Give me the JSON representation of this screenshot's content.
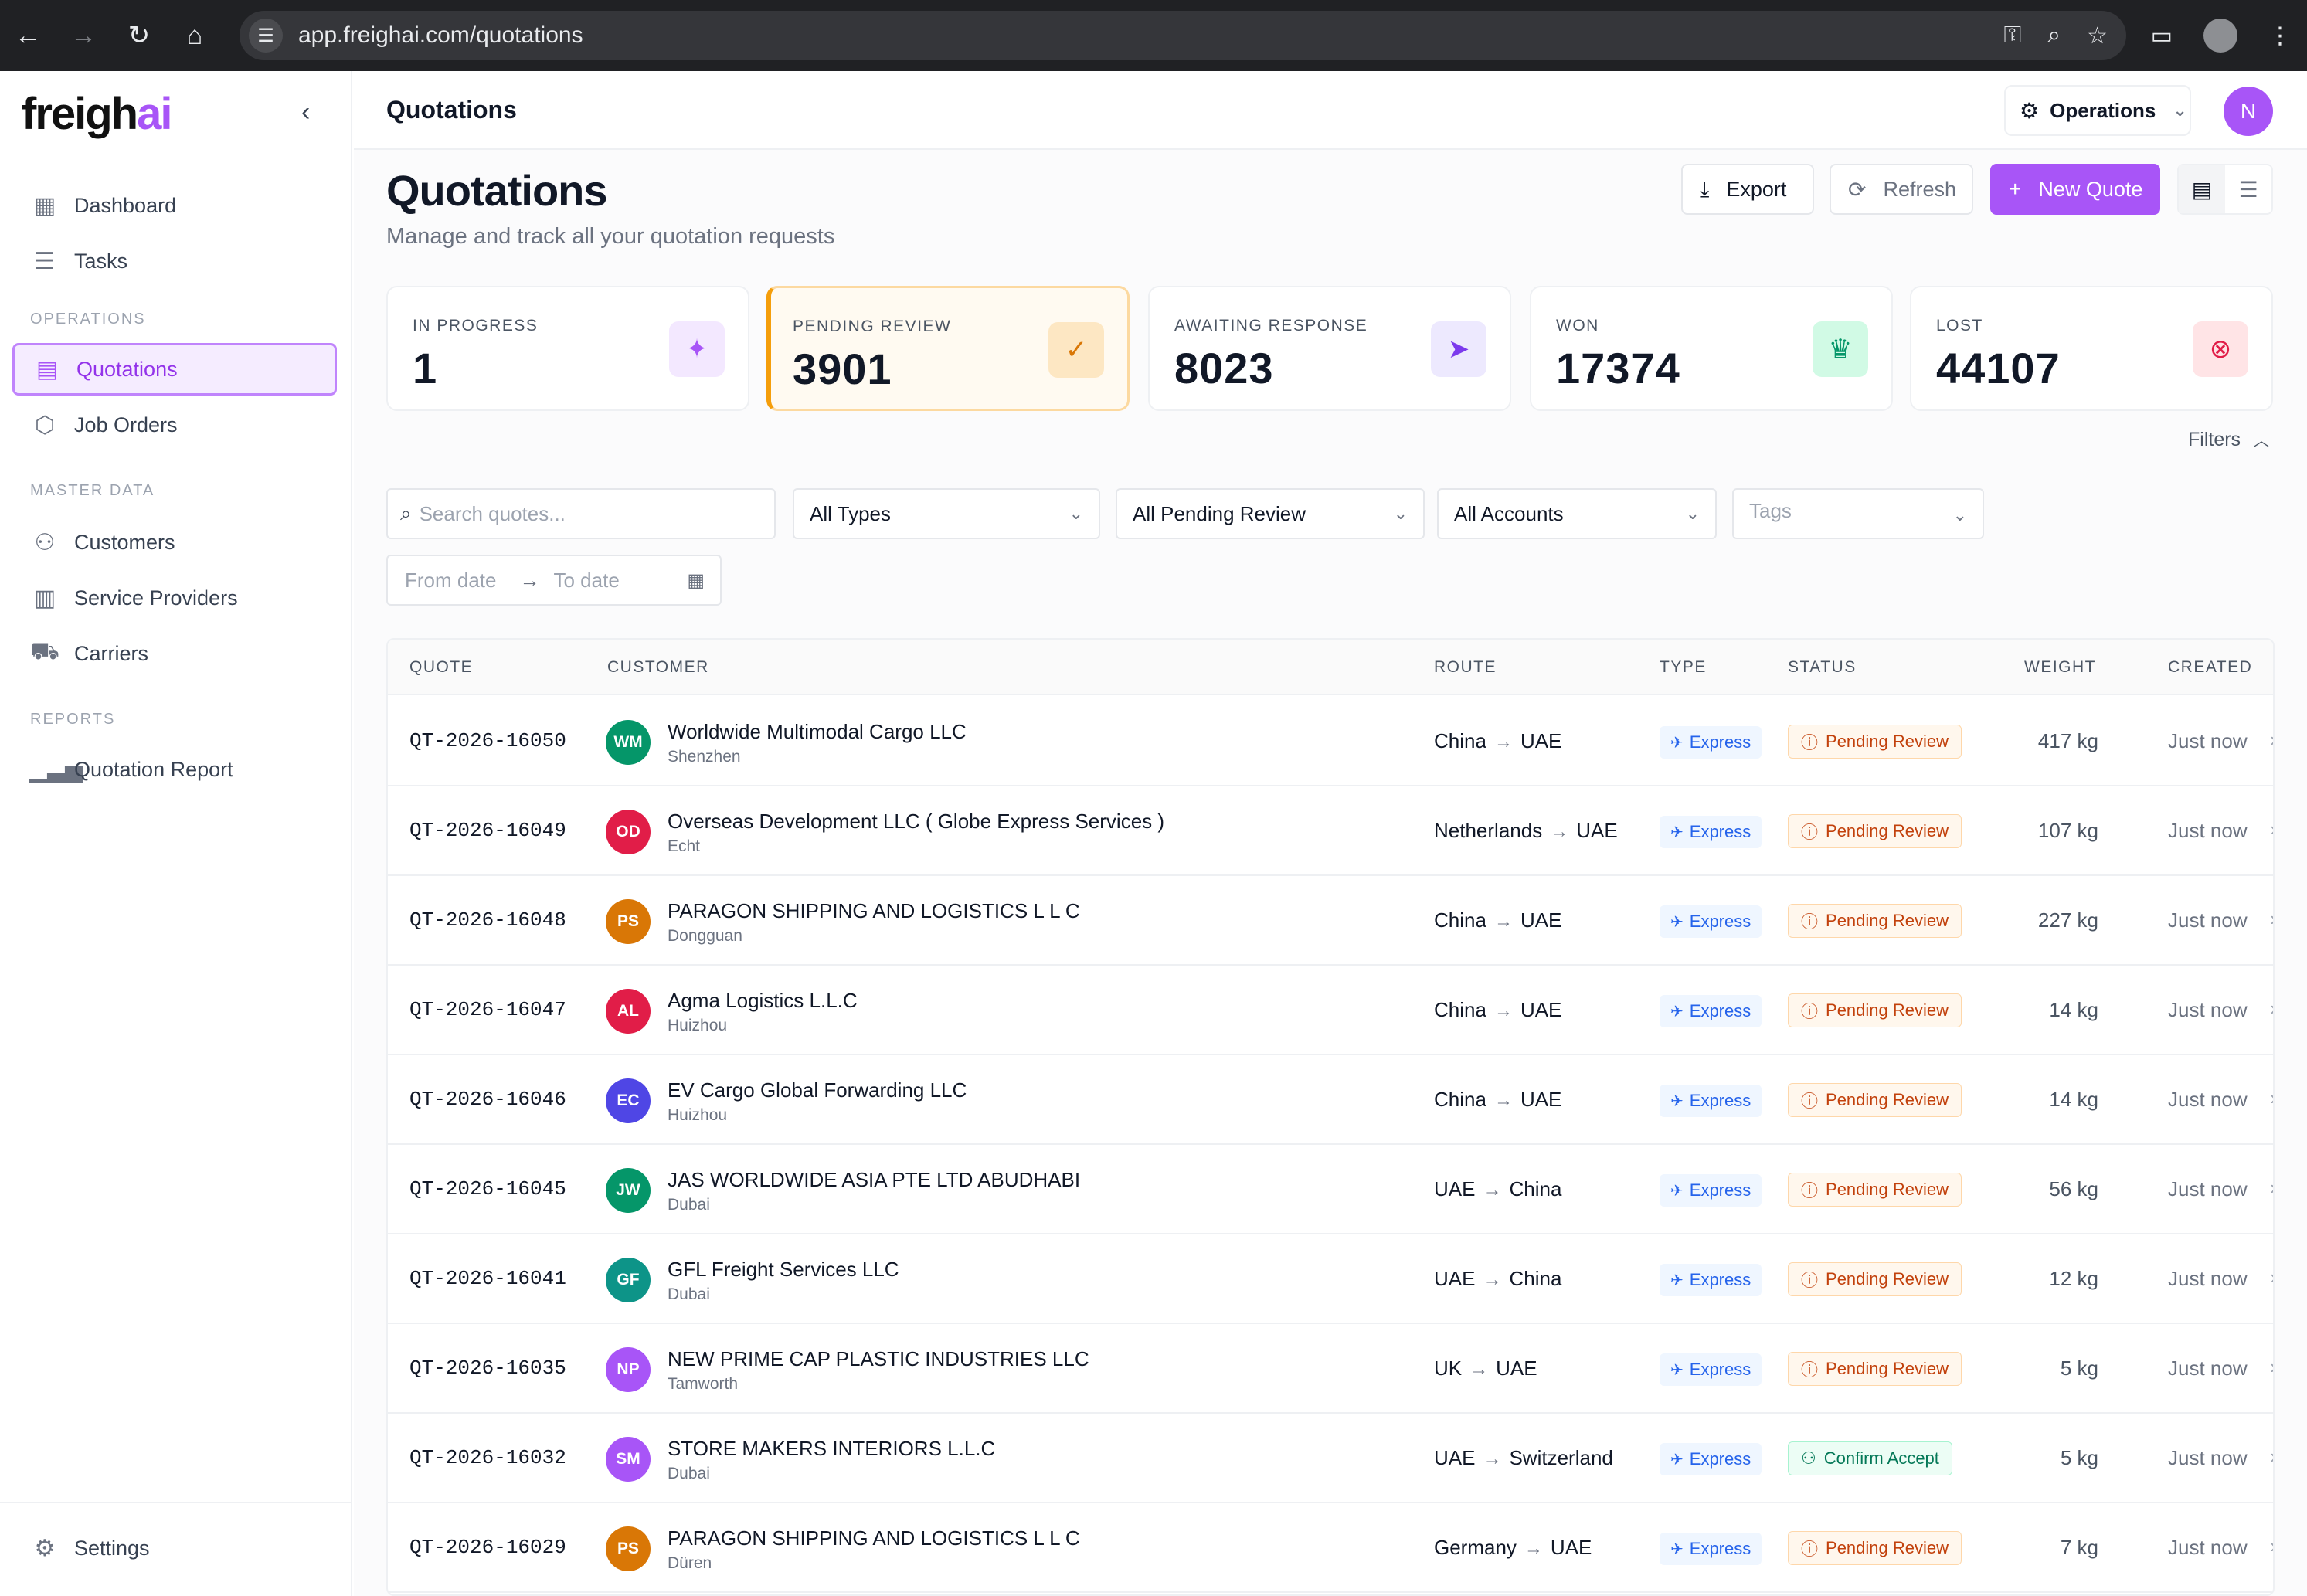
{
  "browser": {
    "url": "app.freighai.com/quotations",
    "icons": [
      "back-arrow-icon",
      "forward-arrow-icon",
      "reload-icon",
      "home-icon",
      "site-settings-icon",
      "key-icon",
      "zoom-icon",
      "star-icon",
      "cast-icon",
      "profile-icon",
      "menu-dots-icon"
    ]
  },
  "sidebar": {
    "logo_main": "freigh",
    "logo_accent": "ai",
    "items_top": [
      {
        "label": "Dashboard",
        "icon": "dashboard-icon"
      },
      {
        "label": "Tasks",
        "icon": "tasks-icon"
      }
    ],
    "section_operations": "OPERATIONS",
    "items_operations": [
      {
        "label": "Quotations",
        "icon": "document-icon"
      },
      {
        "label": "Job Orders",
        "icon": "box-icon"
      }
    ],
    "section_master": "MASTER DATA",
    "items_master": [
      {
        "label": "Customers",
        "icon": "users-icon"
      },
      {
        "label": "Service Providers",
        "icon": "building-icon"
      },
      {
        "label": "Carriers",
        "icon": "truck-icon"
      }
    ],
    "section_reports": "REPORTS",
    "items_reports": [
      {
        "label": "Quotation Report",
        "icon": "bar-chart-icon"
      }
    ],
    "settings_label": "Settings"
  },
  "header": {
    "crumb": "Quotations",
    "workspace": "Operations",
    "avatar_initial": "N"
  },
  "page": {
    "title": "Quotations",
    "subtitle": "Manage and track all your quotation requests",
    "export_label": "Export",
    "refresh_label": "Refresh",
    "new_quote_label": "New Quote"
  },
  "stats": [
    {
      "label": "IN PROGRESS",
      "value": "1",
      "icon": "sparkle-icon",
      "color": "#a855f7",
      "bg": "#f3e8ff"
    },
    {
      "label": "PENDING REVIEW",
      "value": "3901",
      "icon": "file-check-icon",
      "color": "#d97706",
      "bg": "#fde7c3"
    },
    {
      "label": "AWAITING RESPONSE",
      "value": "8023",
      "icon": "send-icon",
      "color": "#7c3aed",
      "bg": "#ede9fe"
    },
    {
      "label": "WON",
      "value": "17374",
      "icon": "trophy-icon",
      "color": "#059669",
      "bg": "#d1fae5"
    },
    {
      "label": "LOST",
      "value": "44107",
      "icon": "x-circle-icon",
      "color": "#e11d48",
      "bg": "#ffe4e6"
    }
  ],
  "filters": {
    "toggle_label": "Filters",
    "search_placeholder": "Search quotes...",
    "types": "All Types",
    "status": "All Pending Review",
    "accounts": "All Accounts",
    "tags_placeholder": "Tags",
    "from_date_placeholder": "From date",
    "to_date_placeholder": "To date"
  },
  "table": {
    "headers": {
      "quote": "QUOTE",
      "customer": "CUSTOMER",
      "route": "ROUTE",
      "type": "TYPE",
      "status": "STATUS",
      "weight": "WEIGHT",
      "created": "CREATED"
    },
    "rows": [
      {
        "id": "QT-2026-16050",
        "initials": "WM",
        "avatar_color": "#059669",
        "name": "Worldwide Multimodal Cargo LLC",
        "city": "Shenzhen",
        "from": "China",
        "to": "UAE",
        "type": "Express",
        "status": "Pending Review",
        "status_kind": "pending",
        "weight": "417 kg",
        "created": "Just now"
      },
      {
        "id": "QT-2026-16049",
        "initials": "OD",
        "avatar_color": "#e11d48",
        "name": "Overseas Development LLC ( Globe Express Services )",
        "city": "Echt",
        "from": "Netherlands",
        "to": "UAE",
        "type": "Express",
        "status": "Pending Review",
        "status_kind": "pending",
        "weight": "107 kg",
        "created": "Just now"
      },
      {
        "id": "QT-2026-16048",
        "initials": "PS",
        "avatar_color": "#d97706",
        "name": "PARAGON SHIPPING AND LOGISTICS L L C",
        "city": "Dongguan",
        "from": "China",
        "to": "UAE",
        "type": "Express",
        "status": "Pending Review",
        "status_kind": "pending",
        "weight": "227 kg",
        "created": "Just now"
      },
      {
        "id": "QT-2026-16047",
        "initials": "AL",
        "avatar_color": "#e11d48",
        "name": "Agma Logistics L.L.C",
        "city": "Huizhou",
        "from": "China",
        "to": "UAE",
        "type": "Express",
        "status": "Pending Review",
        "status_kind": "pending",
        "weight": "14 kg",
        "created": "Just now"
      },
      {
        "id": "QT-2026-16046",
        "initials": "EC",
        "avatar_color": "#4f46e5",
        "name": "EV Cargo Global Forwarding LLC",
        "city": "Huizhou",
        "from": "China",
        "to": "UAE",
        "type": "Express",
        "status": "Pending Review",
        "status_kind": "pending",
        "weight": "14 kg",
        "created": "Just now"
      },
      {
        "id": "QT-2026-16045",
        "initials": "JW",
        "avatar_color": "#059669",
        "name": "JAS WORLDWIDE ASIA PTE LTD ABUDHABI",
        "city": "Dubai",
        "from": "UAE",
        "to": "China",
        "type": "Express",
        "status": "Pending Review",
        "status_kind": "pending",
        "weight": "56 kg",
        "created": "Just now"
      },
      {
        "id": "QT-2026-16041",
        "initials": "GF",
        "avatar_color": "#0d9488",
        "name": "GFL Freight Services LLC",
        "city": "Dubai",
        "from": "UAE",
        "to": "China",
        "type": "Express",
        "status": "Pending Review",
        "status_kind": "pending",
        "weight": "12 kg",
        "created": "Just now"
      },
      {
        "id": "QT-2026-16035",
        "initials": "NP",
        "avatar_color": "#a855f7",
        "name": "NEW PRIME CAP PLASTIC INDUSTRIES LLC",
        "city": "Tamworth",
        "from": "UK",
        "to": "UAE",
        "type": "Express",
        "status": "Pending Review",
        "status_kind": "pending",
        "weight": "5 kg",
        "created": "Just now"
      },
      {
        "id": "QT-2026-16032",
        "initials": "SM",
        "avatar_color": "#a855f7",
        "name": "STORE MAKERS INTERIORS L.L.C",
        "city": "Dubai",
        "from": "UAE",
        "to": "Switzerland",
        "type": "Express",
        "status": "Confirm Accept",
        "status_kind": "confirm",
        "weight": "5 kg",
        "created": "Just now"
      },
      {
        "id": "QT-2026-16029",
        "initials": "PS",
        "avatar_color": "#d97706",
        "name": "PARAGON SHIPPING AND LOGISTICS L L C",
        "city": "Düren",
        "from": "Germany",
        "to": "UAE",
        "type": "Express",
        "status": "Pending Review",
        "status_kind": "pending",
        "weight": "7 kg",
        "created": "Just now"
      }
    ]
  }
}
